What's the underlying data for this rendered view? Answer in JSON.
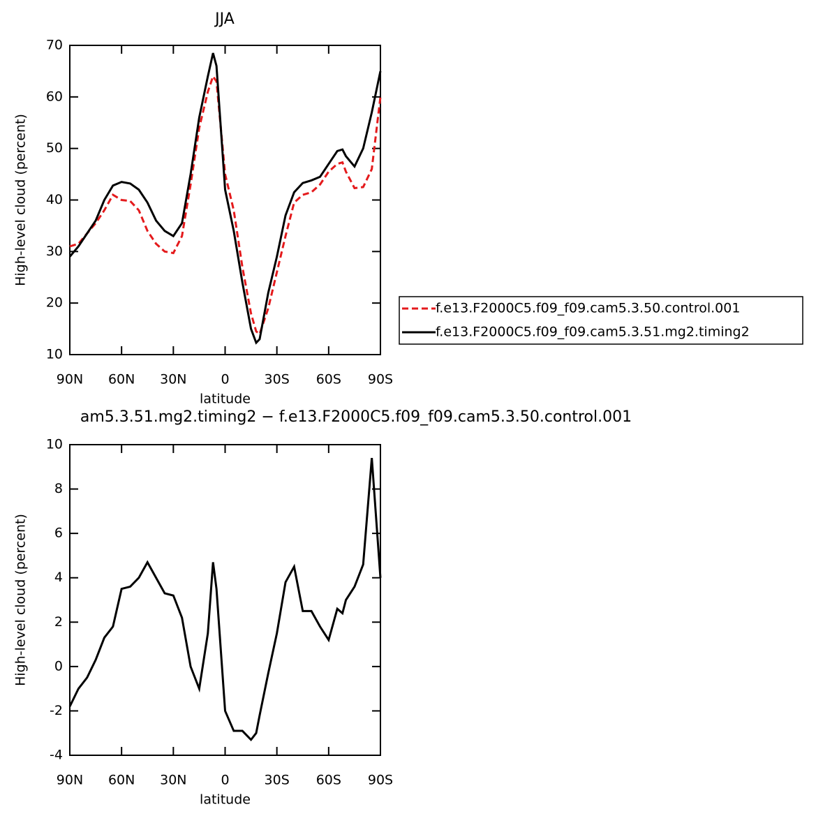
{
  "chart_data": [
    {
      "type": "line",
      "title": "JJA",
      "xlabel": "latitude",
      "ylabel": "High-level cloud (percent)",
      "x": [
        90,
        85,
        80,
        75,
        70,
        65,
        60,
        55,
        50,
        45,
        40,
        35,
        30,
        25,
        20,
        15,
        10,
        7,
        5,
        0,
        -5,
        -10,
        -15,
        -18,
        -20,
        -25,
        -30,
        -35,
        -40,
        -45,
        -50,
        -55,
        -60,
        -65,
        -68,
        -70,
        -75,
        -80,
        -85,
        -90
      ],
      "xlim": [
        90,
        -90
      ],
      "xticks": [
        {
          "value": 90,
          "label": "90N"
        },
        {
          "value": 60,
          "label": "60N"
        },
        {
          "value": 30,
          "label": "30N"
        },
        0,
        {
          "value": -30,
          "label": "30S"
        },
        {
          "value": -60,
          "label": "60S"
        },
        {
          "value": -90,
          "label": "90S"
        }
      ],
      "ylim": [
        10,
        70
      ],
      "yticks": [
        10,
        20,
        30,
        40,
        50,
        60,
        70
      ],
      "series": [
        {
          "name": "f.e13.F2000C5.f09_f09.cam5.3.50.control.001",
          "color": "#e41a1c",
          "dash": true,
          "values": [
            31,
            31.5,
            33.5,
            35.5,
            38,
            41,
            40,
            39.8,
            38,
            34,
            31.5,
            30,
            29.7,
            33,
            43,
            54,
            61,
            64,
            63,
            45,
            38,
            27,
            18,
            14.5,
            14,
            19,
            26,
            33,
            39.5,
            41,
            41.5,
            43,
            45.5,
            47,
            47.3,
            45.5,
            42.3,
            42.5,
            46,
            60
          ]
        },
        {
          "name": "f.e13.F2000C5.f09_f09.cam5.3.51.mg2.timing2",
          "color": "#000000",
          "dash": false,
          "values": [
            29,
            31,
            33.5,
            36,
            40,
            42.8,
            43.5,
            43.2,
            42,
            39.5,
            36,
            34,
            33,
            35.5,
            45,
            56,
            64,
            68.5,
            66,
            42,
            34,
            24,
            15,
            12.3,
            13,
            22,
            29,
            37,
            41.5,
            43.3,
            43.8,
            44.5,
            47,
            49.5,
            49.8,
            48.5,
            46.5,
            50,
            57,
            65
          ]
        }
      ]
    },
    {
      "type": "line",
      "title": "am5.3.51.mg2.timing2 − f.e13.F2000C5.f09_f09.cam5.3.50.control.001",
      "xlabel": "latitude",
      "ylabel": "High-level cloud (percent)",
      "x": [
        90,
        85,
        80,
        75,
        70,
        65,
        60,
        55,
        50,
        45,
        40,
        35,
        30,
        25,
        20,
        15,
        10,
        7,
        5,
        0,
        -5,
        -10,
        -15,
        -18,
        -20,
        -25,
        -30,
        -35,
        -40,
        -45,
        -50,
        -55,
        -60,
        -65,
        -68,
        -70,
        -75,
        -80,
        -85,
        -90
      ],
      "xlim": [
        90,
        -90
      ],
      "xticks": [
        {
          "value": 90,
          "label": "90N"
        },
        {
          "value": 60,
          "label": "60N"
        },
        {
          "value": 30,
          "label": "30N"
        },
        0,
        {
          "value": -30,
          "label": "30S"
        },
        {
          "value": -60,
          "label": "60S"
        },
        {
          "value": -90,
          "label": "90S"
        }
      ],
      "ylim": [
        -4,
        10
      ],
      "yticks": [
        -4,
        -2,
        0,
        2,
        4,
        6,
        8,
        10
      ],
      "series": [
        {
          "color": "#000000",
          "dash": false,
          "values": [
            -1.8,
            -1.0,
            -0.5,
            0.3,
            1.3,
            1.8,
            3.5,
            3.6,
            4.0,
            4.7,
            4.0,
            3.3,
            3.2,
            2.2,
            0,
            -1.0,
            1.5,
            4.7,
            3.5,
            -2.0,
            -2.9,
            -2.9,
            -3.3,
            -3.0,
            -2.2,
            -0.3,
            1.5,
            3.8,
            4.5,
            2.5,
            2.5,
            1.8,
            1.2,
            2.6,
            2.4,
            3.0,
            3.6,
            4.6,
            9.4,
            4.0
          ]
        }
      ]
    }
  ]
}
